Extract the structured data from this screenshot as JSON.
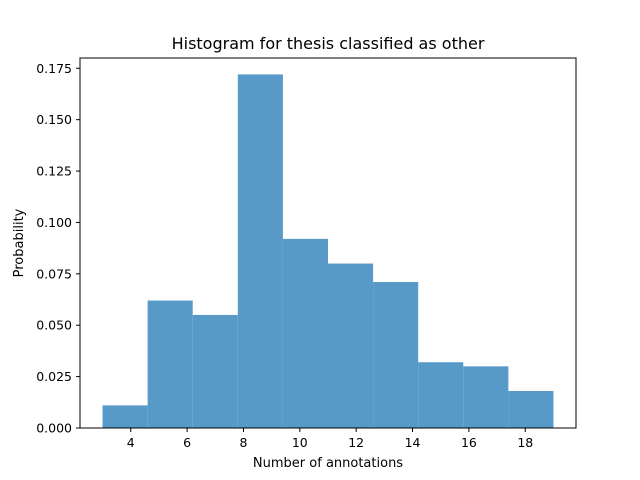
{
  "chart_data": {
    "type": "bar",
    "title": "Histogram for thesis classified as other",
    "xlabel": "Number of annotations",
    "ylabel": "Probability",
    "xlim": [
      2.2,
      19.8
    ],
    "ylim": [
      0,
      0.18
    ],
    "xticks": [
      4,
      6,
      8,
      10,
      12,
      14,
      16,
      18
    ],
    "xtick_labels": [
      "4",
      "6",
      "8",
      "10",
      "12",
      "14",
      "16",
      "18"
    ],
    "yticks": [
      0,
      0.025,
      0.05,
      0.075,
      0.1,
      0.125,
      0.15,
      0.175
    ],
    "ytick_labels": [
      "0.000",
      "0.025",
      "0.050",
      "0.075",
      "0.100",
      "0.125",
      "0.150",
      "0.175"
    ],
    "bin_edges": [
      3,
      4.6,
      6.2,
      7.8,
      9.4,
      11,
      12.6,
      14.2,
      15.8,
      17.4,
      19
    ],
    "values": [
      0.011,
      0.062,
      0.055,
      0.172,
      0.092,
      0.08,
      0.071,
      0.032,
      0.03,
      0.018
    ],
    "bar_color": "#5799c7",
    "grid": false,
    "legend": false
  }
}
